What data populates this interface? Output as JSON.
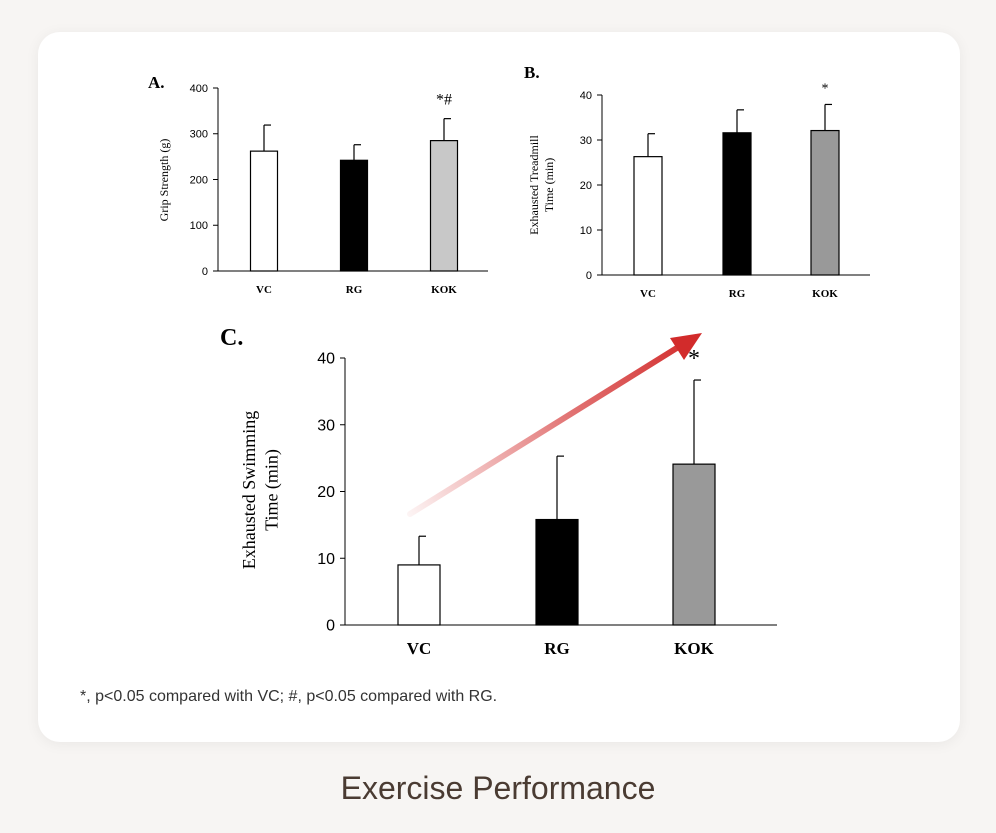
{
  "footnote": "*, p<0.05 compared with VC; #, p<0.05 compared with RG.",
  "page_title": "Exercise Performance",
  "colors": {
    "VC": "#ffffff",
    "RG": "#000000",
    "KOK_A": "#c8c8c8",
    "KOK": "#999999",
    "arrow": "#d22b2b"
  },
  "chart_data": [
    {
      "panel": "A.",
      "type": "bar",
      "categories": [
        "VC",
        "RG",
        "KOK"
      ],
      "values": [
        262,
        242,
        285
      ],
      "errors": [
        57,
        34,
        48
      ],
      "significance": [
        "",
        "",
        "*#"
      ],
      "ylabel": "Grip Strength (g)",
      "ylim": [
        0,
        400
      ],
      "yticks": [
        0,
        100,
        200,
        300,
        400
      ]
    },
    {
      "panel": "B.",
      "type": "bar",
      "categories": [
        "VC",
        "RG",
        "KOK"
      ],
      "values": [
        26.3,
        31.6,
        32.1
      ],
      "errors": [
        5.1,
        5.1,
        5.8
      ],
      "significance": [
        "",
        "",
        "*"
      ],
      "ylabel": "Exhausted Treadmill Time (min)",
      "ylim": [
        0,
        40
      ],
      "yticks": [
        0,
        10,
        20,
        30,
        40
      ]
    },
    {
      "panel": "C.",
      "type": "bar",
      "categories": [
        "VC",
        "RG",
        "KOK"
      ],
      "values": [
        9.0,
        15.8,
        24.1
      ],
      "errors": [
        4.3,
        9.5,
        12.6
      ],
      "significance": [
        "",
        "",
        "*"
      ],
      "ylabel": "Exhausted Swimming Time (min)",
      "ylim": [
        0,
        40
      ],
      "yticks": [
        0,
        10,
        20,
        30,
        40
      ],
      "trend_arrow": true
    }
  ]
}
